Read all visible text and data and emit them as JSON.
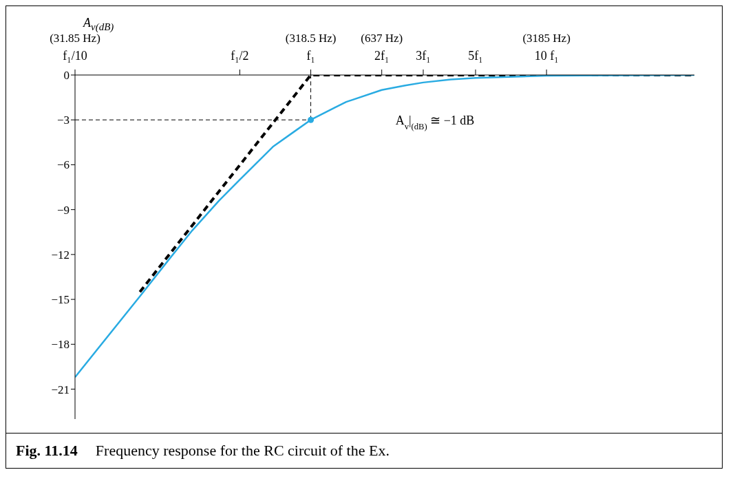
{
  "chart_data": {
    "type": "line",
    "ylabel": "A$_{v(dB)}$",
    "log": "x",
    "xlim": [
      31.85,
      13500
    ],
    "ylim": [
      -23,
      0
    ],
    "xticks": [
      {
        "value": 31.85,
        "label": "(31.85 Hz)"
      },
      {
        "value": 159.25,
        "label": null
      },
      {
        "value": 318.5,
        "label": "(318.5 Hz)"
      },
      {
        "value": 637,
        "label": "(637 Hz)"
      },
      {
        "value": 955.5,
        "label": null
      },
      {
        "value": 1592.5,
        "label": null
      },
      {
        "value": 3185,
        "label": "(3185 Hz)"
      }
    ],
    "yticks": [
      0,
      {
        "value": -3,
        "label": "−3"
      },
      {
        "value": -6,
        "label": "−6"
      },
      {
        "value": -9,
        "label": "−9"
      },
      {
        "value": -12,
        "label": "−12"
      },
      {
        "value": -15,
        "label": "−15"
      },
      {
        "value": -18,
        "label": "−18"
      },
      {
        "value": -21,
        "label": "−21"
      }
    ],
    "grid": false,
    "marker": "none",
    "series": [
      {
        "color": "#000000",
        "line_style": "dashed",
        "x": [
          60,
          318.5,
          13500
        ],
        "values": [
          -14.5,
          0,
          0
        ]
      },
      {
        "color": "#29abe2",
        "line_style": "solid",
        "x": [
          31.85,
          60,
          80,
          100,
          130,
          159.25,
          220,
          270,
          318.5,
          400,
          450,
          637,
          800,
          955.5,
          1250,
          1592.5,
          3185,
          13500
        ],
        "values": [
          -20.2,
          -14.8,
          -12.3,
          -10.4,
          -8.4,
          -7,
          -4.8,
          -3.8,
          -3,
          -2.2,
          -1.8,
          -1,
          -0.7,
          -0.5,
          -0.3,
          -0.2,
          -0.05,
          0
        ]
      },
      {
        "type": "scatter",
        "marker": "circle",
        "color": "#29abe2",
        "x": [
          318.5
        ],
        "values": [
          -3
        ]
      }
    ],
    "ref_lines": [
      {
        "axis": "y",
        "value": -3,
        "line_style": "dashed",
        "color": "#000000"
      },
      {
        "axis": "x",
        "value": 318.5,
        "line_style": "dashed",
        "color": "#000000"
      }
    ],
    "annotations": [
      {
        "text": "A$_{v}$|$_{(dB)}$ ≅ −1 dB",
        "x": 637,
        "y": -1
      },
      "f₁/10",
      "f₁/2",
      "f₁",
      "2f₁",
      "3f₁",
      "5f₁",
      "10 f₁",
      "Fig. 11.14",
      "Frequency response for the RC circuit of the Ex."
    ]
  }
}
